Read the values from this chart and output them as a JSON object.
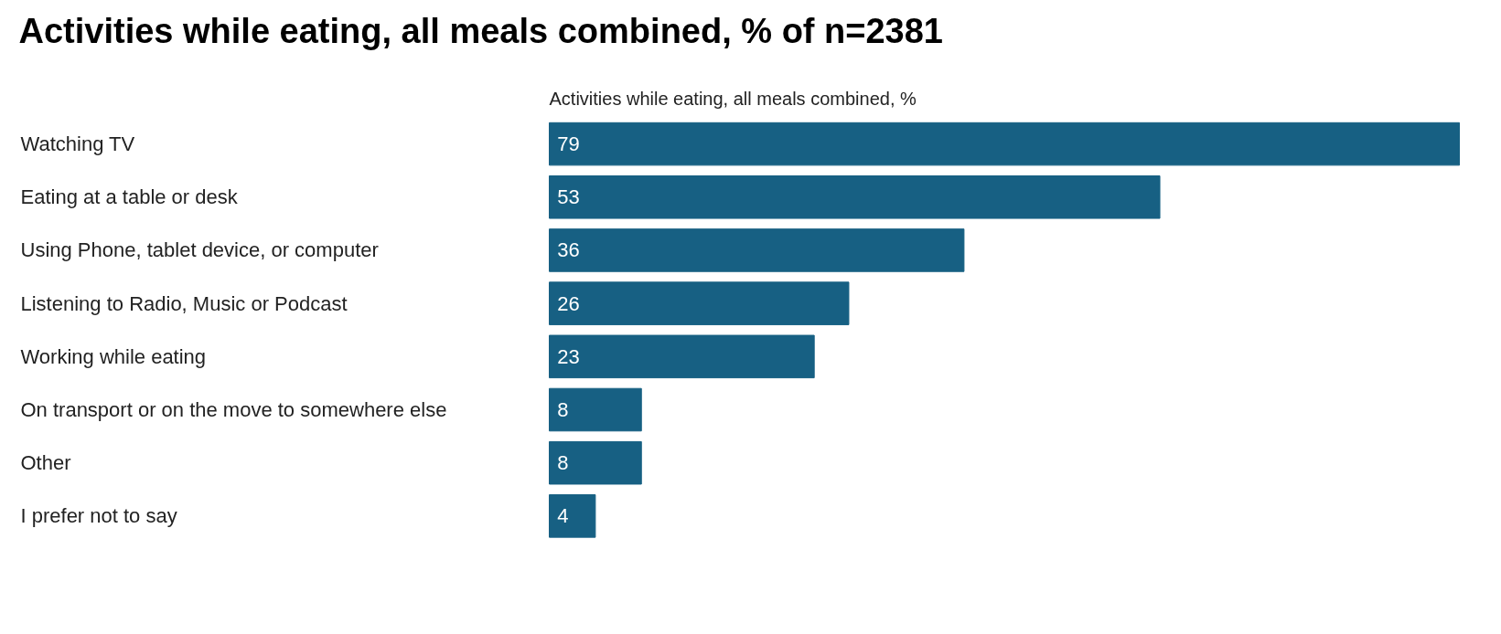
{
  "chart_data": {
    "type": "bar",
    "orientation": "horizontal",
    "title": "Activities while eating, all meals combined, % of n=2381",
    "subtitle": "Activities while eating, all meals combined, %",
    "categories": [
      "Watching TV",
      "Eating at a table or desk",
      "Using Phone, tablet device, or computer",
      "Listening to Radio, Music or Podcast",
      "Working while eating",
      "On transport or on the move to somewhere else",
      "Other",
      "I prefer not to say"
    ],
    "values": [
      79,
      53,
      36,
      26,
      23,
      8,
      8,
      4
    ],
    "color": "#176083",
    "data_labels": true
  }
}
